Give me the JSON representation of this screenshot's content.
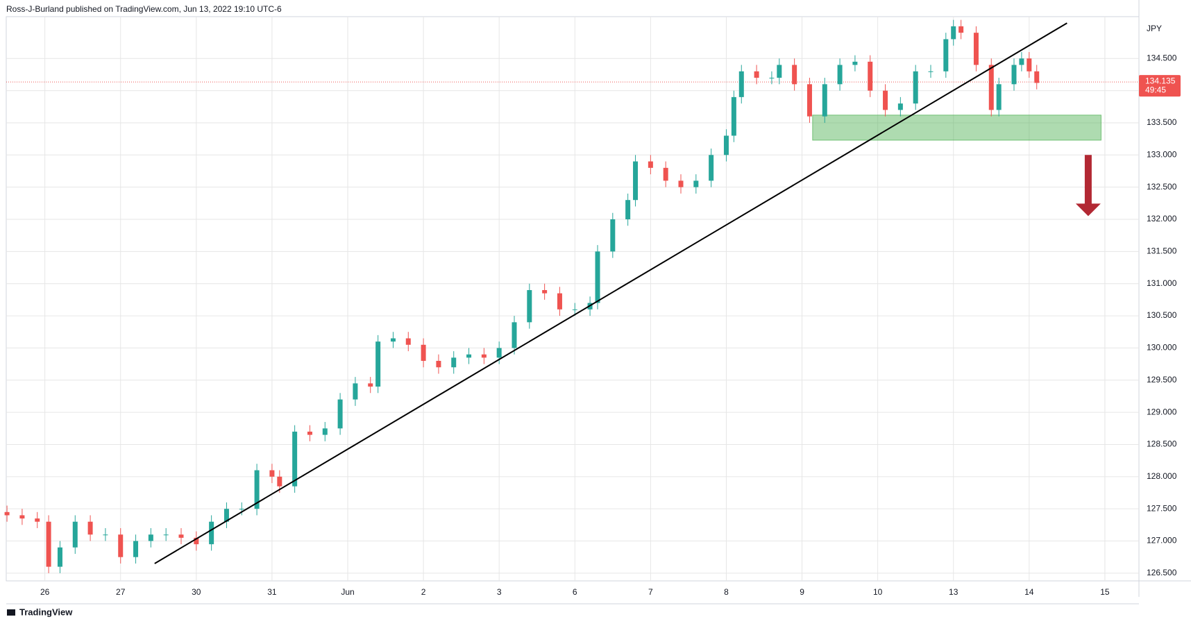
{
  "header": {
    "text": "Ross-J-Burland published on TradingView.com, Jun 13, 2022 19:10 UTC-6"
  },
  "footer": {
    "brand": "TradingView"
  },
  "chart_data": {
    "type": "candlestick",
    "currency": "JPY",
    "up_color": "#26a69a",
    "down_color": "#ef5350",
    "grid": true,
    "xlim": [
      -0.51,
      14.45
    ],
    "xticks": [
      {
        "value": 0,
        "label": "26"
      },
      {
        "value": 1,
        "label": "27"
      },
      {
        "value": 2,
        "label": "30"
      },
      {
        "value": 3,
        "label": "31"
      },
      {
        "value": 4,
        "label": "Jun"
      },
      {
        "value": 5,
        "label": "2"
      },
      {
        "value": 6,
        "label": "3"
      },
      {
        "value": 7,
        "label": "6"
      },
      {
        "value": 8,
        "label": "7"
      },
      {
        "value": 9,
        "label": "8"
      },
      {
        "value": 10,
        "label": "9"
      },
      {
        "value": 11,
        "label": "10"
      },
      {
        "value": 12,
        "label": "13"
      },
      {
        "value": 13,
        "label": "14"
      },
      {
        "value": 14,
        "label": "15"
      }
    ],
    "ylim": [
      126.38,
      135.15
    ],
    "yticks": [
      {
        "value": 126.5,
        "label": "126.500"
      },
      {
        "value": 127,
        "label": "127.000"
      },
      {
        "value": 127.5,
        "label": "127.500"
      },
      {
        "value": 128,
        "label": "128.000"
      },
      {
        "value": 128.5,
        "label": "128.500"
      },
      {
        "value": 129,
        "label": "129.000"
      },
      {
        "value": 129.5,
        "label": "129.500"
      },
      {
        "value": 130,
        "label": "130.000"
      },
      {
        "value": 130.5,
        "label": "130.500"
      },
      {
        "value": 131,
        "label": "131.000"
      },
      {
        "value": 131.5,
        "label": "131.500"
      },
      {
        "value": 132,
        "label": "132.000"
      },
      {
        "value": 132.5,
        "label": "132.500"
      },
      {
        "value": 133,
        "label": "133.000"
      },
      {
        "value": 133.5,
        "label": "133.500"
      },
      {
        "value": 134,
        "label": "134.000"
      },
      {
        "value": 134.5,
        "label": "134.500"
      }
    ],
    "x": [
      -0.5,
      -0.3,
      -0.1,
      0.05,
      0.2,
      0.4,
      0.6,
      0.8,
      1.0,
      1.2,
      1.4,
      1.6,
      1.8,
      2.0,
      2.2,
      2.4,
      2.6,
      2.8,
      3.0,
      3.1,
      3.3,
      3.5,
      3.7,
      3.9,
      4.1,
      4.3,
      4.4,
      4.6,
      4.8,
      5.0,
      5.2,
      5.4,
      5.6,
      5.8,
      6.0,
      6.2,
      6.4,
      6.6,
      6.8,
      7.0,
      7.2,
      7.3,
      7.5,
      7.7,
      7.8,
      8.0,
      8.2,
      8.4,
      8.6,
      8.8,
      9.0,
      9.1,
      9.2,
      9.4,
      9.6,
      9.7,
      9.9,
      10.1,
      10.3,
      10.5,
      10.7,
      10.9,
      11.1,
      11.3,
      11.5,
      11.7,
      11.9,
      12.0,
      12.1,
      12.3,
      12.5,
      12.6,
      12.8,
      12.9,
      13.0,
      13.1
    ],
    "open": [
      127.45,
      127.4,
      127.35,
      127.3,
      126.6,
      126.9,
      127.3,
      127.1,
      127.1,
      126.75,
      127.0,
      127.1,
      127.1,
      127.05,
      126.95,
      127.3,
      127.5,
      127.5,
      128.1,
      128.0,
      127.85,
      128.7,
      128.65,
      128.75,
      129.2,
      129.45,
      129.4,
      130.1,
      130.15,
      130.05,
      129.8,
      129.7,
      129.85,
      129.9,
      129.85,
      130.0,
      130.4,
      130.9,
      130.85,
      130.6,
      130.6,
      130.7,
      131.5,
      132.0,
      132.3,
      132.9,
      132.8,
      132.6,
      132.5,
      132.6,
      133.0,
      133.3,
      133.9,
      134.3,
      134.2,
      134.2,
      134.4,
      134.1,
      133.6,
      134.1,
      134.4,
      134.45,
      134.0,
      133.7,
      133.8,
      134.3,
      134.3,
      134.8,
      135.0,
      134.9,
      134.4,
      133.7,
      134.1,
      134.4,
      134.5,
      134.3
    ],
    "high": [
      127.55,
      127.5,
      127.45,
      127.4,
      127.0,
      127.4,
      127.4,
      127.2,
      127.2,
      127.1,
      127.2,
      127.2,
      127.2,
      127.15,
      127.4,
      127.6,
      127.6,
      128.2,
      128.2,
      128.1,
      128.8,
      128.8,
      128.85,
      129.3,
      129.55,
      129.55,
      130.2,
      130.25,
      130.25,
      130.15,
      129.9,
      129.95,
      130.0,
      130.0,
      130.1,
      130.5,
      131.0,
      131.0,
      130.95,
      130.7,
      130.8,
      131.6,
      132.1,
      132.4,
      133.0,
      133.0,
      132.9,
      132.7,
      132.7,
      133.1,
      133.4,
      134.0,
      134.4,
      134.4,
      134.3,
      134.5,
      134.5,
      134.2,
      134.2,
      134.5,
      134.55,
      134.55,
      134.1,
      133.9,
      134.4,
      134.4,
      134.9,
      135.1,
      135.1,
      135.0,
      134.5,
      134.2,
      134.5,
      134.6,
      134.6,
      134.4
    ],
    "low": [
      127.3,
      127.25,
      127.2,
      126.5,
      126.5,
      126.8,
      127.0,
      127.0,
      126.65,
      126.65,
      126.9,
      127.0,
      126.95,
      126.85,
      126.85,
      127.2,
      127.4,
      127.4,
      127.9,
      127.75,
      127.75,
      128.55,
      128.55,
      128.65,
      129.1,
      129.3,
      129.3,
      130.0,
      129.95,
      129.7,
      129.6,
      129.6,
      129.75,
      129.75,
      129.75,
      129.9,
      130.3,
      130.75,
      130.5,
      130.5,
      130.5,
      130.6,
      131.4,
      131.9,
      132.2,
      132.7,
      132.5,
      132.4,
      132.4,
      132.5,
      132.9,
      133.2,
      133.8,
      134.1,
      134.1,
      134.1,
      134.0,
      133.5,
      133.5,
      134.0,
      134.3,
      133.9,
      133.6,
      133.6,
      133.7,
      134.2,
      134.2,
      134.7,
      134.8,
      134.3,
      133.6,
      133.6,
      134.0,
      134.3,
      134.2,
      134.02
    ],
    "close": [
      127.4,
      127.35,
      127.3,
      126.6,
      126.9,
      127.3,
      127.1,
      127.1,
      126.75,
      127.0,
      127.1,
      127.1,
      127.05,
      126.95,
      127.3,
      127.5,
      127.5,
      128.1,
      128.0,
      127.85,
      128.7,
      128.65,
      128.75,
      129.2,
      129.45,
      129.4,
      130.1,
      130.15,
      130.05,
      129.8,
      129.7,
      129.85,
      129.9,
      129.85,
      130.0,
      130.4,
      130.9,
      130.85,
      130.6,
      130.6,
      130.7,
      131.5,
      132.0,
      132.3,
      132.9,
      132.8,
      132.6,
      132.5,
      132.6,
      133.0,
      133.3,
      133.9,
      134.3,
      134.2,
      134.2,
      134.4,
      134.1,
      133.6,
      134.1,
      134.4,
      134.45,
      134.0,
      133.7,
      133.8,
      134.3,
      134.3,
      134.8,
      135.0,
      134.9,
      134.4,
      133.7,
      134.1,
      134.4,
      134.5,
      134.3,
      134.12
    ],
    "last_price": {
      "value": 134.135,
      "countdown": "49:45",
      "color": "#ef5350"
    },
    "trendline": {
      "x": [
        1.45,
        13.5
      ],
      "y": [
        126.65,
        135.05
      ],
      "color": "#000000"
    },
    "zone": {
      "x": [
        10.14,
        13.95
      ],
      "y": [
        133.23,
        133.62
      ],
      "color": "#4caf50"
    },
    "arrow": {
      "x": 13.78,
      "y": [
        133.0,
        132.05
      ],
      "color": "#b22833"
    }
  }
}
